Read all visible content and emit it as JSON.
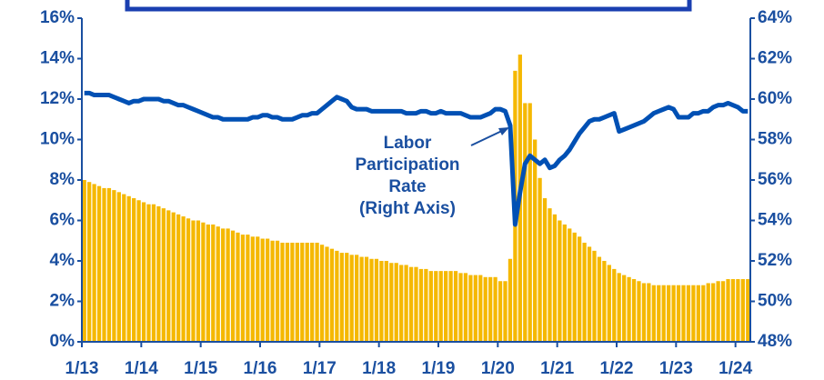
{
  "chart_data": {
    "type": "bar-line",
    "categories": [
      "1/13",
      null,
      null,
      null,
      null,
      null,
      null,
      null,
      null,
      null,
      null,
      null,
      "1/14",
      null,
      null,
      null,
      null,
      null,
      null,
      null,
      null,
      null,
      null,
      null,
      "1/15",
      null,
      null,
      null,
      null,
      null,
      null,
      null,
      null,
      null,
      null,
      null,
      "1/16",
      null,
      null,
      null,
      null,
      null,
      null,
      null,
      null,
      null,
      null,
      null,
      "1/17",
      null,
      null,
      null,
      null,
      null,
      null,
      null,
      null,
      null,
      null,
      null,
      "1/18",
      null,
      null,
      null,
      null,
      null,
      null,
      null,
      null,
      null,
      null,
      null,
      "1/19",
      null,
      null,
      null,
      null,
      null,
      null,
      null,
      null,
      null,
      null,
      null,
      "1/20",
      null,
      null,
      null,
      null,
      null,
      null,
      null,
      null,
      null,
      null,
      null,
      "1/21",
      null,
      null,
      null,
      null,
      null,
      null,
      null,
      null,
      null,
      null,
      null,
      "1/22",
      null,
      null,
      null,
      null,
      null,
      null,
      null,
      null,
      null,
      null,
      null,
      "1/23",
      null,
      null,
      null,
      null,
      null,
      null,
      null,
      null,
      null,
      null,
      null,
      "1/24",
      null,
      null
    ],
    "series": [
      {
        "color": "#f5b800",
        "values": [
          8.0,
          7.9,
          7.8,
          7.7,
          7.6,
          7.6,
          7.5,
          7.4,
          7.3,
          7.2,
          7.1,
          7.0,
          6.9,
          6.8,
          6.8,
          6.7,
          6.6,
          6.5,
          6.4,
          6.3,
          6.2,
          6.1,
          6.0,
          6.0,
          5.9,
          5.8,
          5.8,
          5.7,
          5.6,
          5.6,
          5.5,
          5.4,
          5.3,
          5.3,
          5.2,
          5.2,
          5.1,
          5.1,
          5.0,
          5.0,
          4.9,
          4.9,
          4.9,
          4.9,
          4.9,
          4.9,
          4.9,
          4.9,
          4.8,
          4.7,
          4.6,
          4.5,
          4.4,
          4.4,
          4.3,
          4.3,
          4.2,
          4.2,
          4.1,
          4.1,
          4.0,
          4.0,
          3.9,
          3.9,
          3.8,
          3.8,
          3.7,
          3.7,
          3.6,
          3.6,
          3.5,
          3.5,
          3.5,
          3.5,
          3.5,
          3.5,
          3.4,
          3.4,
          3.3,
          3.3,
          3.3,
          3.2,
          3.2,
          3.2,
          3.0,
          3.0,
          4.1,
          13.4,
          14.2,
          11.8,
          11.8,
          10.0,
          8.1,
          7.1,
          6.6,
          6.3,
          6.0,
          5.8,
          5.6,
          5.4,
          5.2,
          4.9,
          4.7,
          4.5,
          4.2,
          4.0,
          3.8,
          3.6,
          3.4,
          3.3,
          3.2,
          3.1,
          3.0,
          2.9,
          2.9,
          2.8,
          2.8,
          2.8,
          2.8,
          2.8,
          2.8,
          2.8,
          2.8,
          2.8,
          2.8,
          2.8,
          2.9,
          2.9,
          3.0,
          3.0,
          3.1,
          3.1,
          3.1,
          3.1,
          3.1
        ]
      },
      {
        "name": "Labor Participation Rate (Right Axis)",
        "color": "#0050b4",
        "axis": "y2",
        "values": [
          60.3,
          60.3,
          60.2,
          60.2,
          60.2,
          60.2,
          60.1,
          60.0,
          59.9,
          59.8,
          59.9,
          59.9,
          60.0,
          60.0,
          60.0,
          60.0,
          59.9,
          59.9,
          59.8,
          59.7,
          59.7,
          59.6,
          59.5,
          59.4,
          59.3,
          59.2,
          59.1,
          59.1,
          59.0,
          59.0,
          59.0,
          59.0,
          59.0,
          59.0,
          59.1,
          59.1,
          59.2,
          59.2,
          59.1,
          59.1,
          59.0,
          59.0,
          59.0,
          59.1,
          59.2,
          59.2,
          59.3,
          59.3,
          59.5,
          59.7,
          59.9,
          60.1,
          60.0,
          59.9,
          59.6,
          59.5,
          59.5,
          59.5,
          59.4,
          59.4,
          59.4,
          59.4,
          59.4,
          59.4,
          59.4,
          59.3,
          59.3,
          59.3,
          59.4,
          59.4,
          59.3,
          59.3,
          59.4,
          59.3,
          59.3,
          59.3,
          59.3,
          59.2,
          59.1,
          59.1,
          59.1,
          59.2,
          59.3,
          59.5,
          59.5,
          59.4,
          58.7,
          53.8,
          55.4,
          56.8,
          57.2,
          57.0,
          56.8,
          57.0,
          56.6,
          56.7,
          57.0,
          57.2,
          57.5,
          57.9,
          58.3,
          58.6,
          58.9,
          59.0,
          59.0,
          59.1,
          59.2,
          59.3,
          58.4,
          58.5,
          58.6,
          58.7,
          58.8,
          58.9,
          59.1,
          59.3,
          59.4,
          59.5,
          59.6,
          59.5,
          59.1,
          59.1,
          59.1,
          59.3,
          59.3,
          59.4,
          59.4,
          59.6,
          59.7,
          59.7,
          59.8,
          59.7,
          59.6,
          59.4,
          59.4
        ]
      }
    ],
    "ylim": [
      0,
      16
    ],
    "yticks": [
      {
        "value": 0,
        "label": "0%"
      },
      {
        "value": 2,
        "label": "2%"
      },
      {
        "value": 4,
        "label": "4%"
      },
      {
        "value": 6,
        "label": "6%"
      },
      {
        "value": 8,
        "label": "8%"
      },
      {
        "value": 10,
        "label": "10%"
      },
      {
        "value": 12,
        "label": "12%"
      },
      {
        "value": 14,
        "label": "14%"
      },
      {
        "value": 16,
        "label": "16%"
      }
    ],
    "y2lim": [
      48,
      64
    ],
    "y2ticks": [
      {
        "value": 48,
        "label": "48%"
      },
      {
        "value": 50,
        "label": "50%"
      },
      {
        "value": 52,
        "label": "52%"
      },
      {
        "value": 54,
        "label": "54%"
      },
      {
        "value": 56,
        "label": "56%"
      },
      {
        "value": 58,
        "label": "58%"
      },
      {
        "value": 60,
        "label": "60%"
      },
      {
        "value": 62,
        "label": "62%"
      },
      {
        "value": 64,
        "label": "64%"
      }
    ]
  }
}
